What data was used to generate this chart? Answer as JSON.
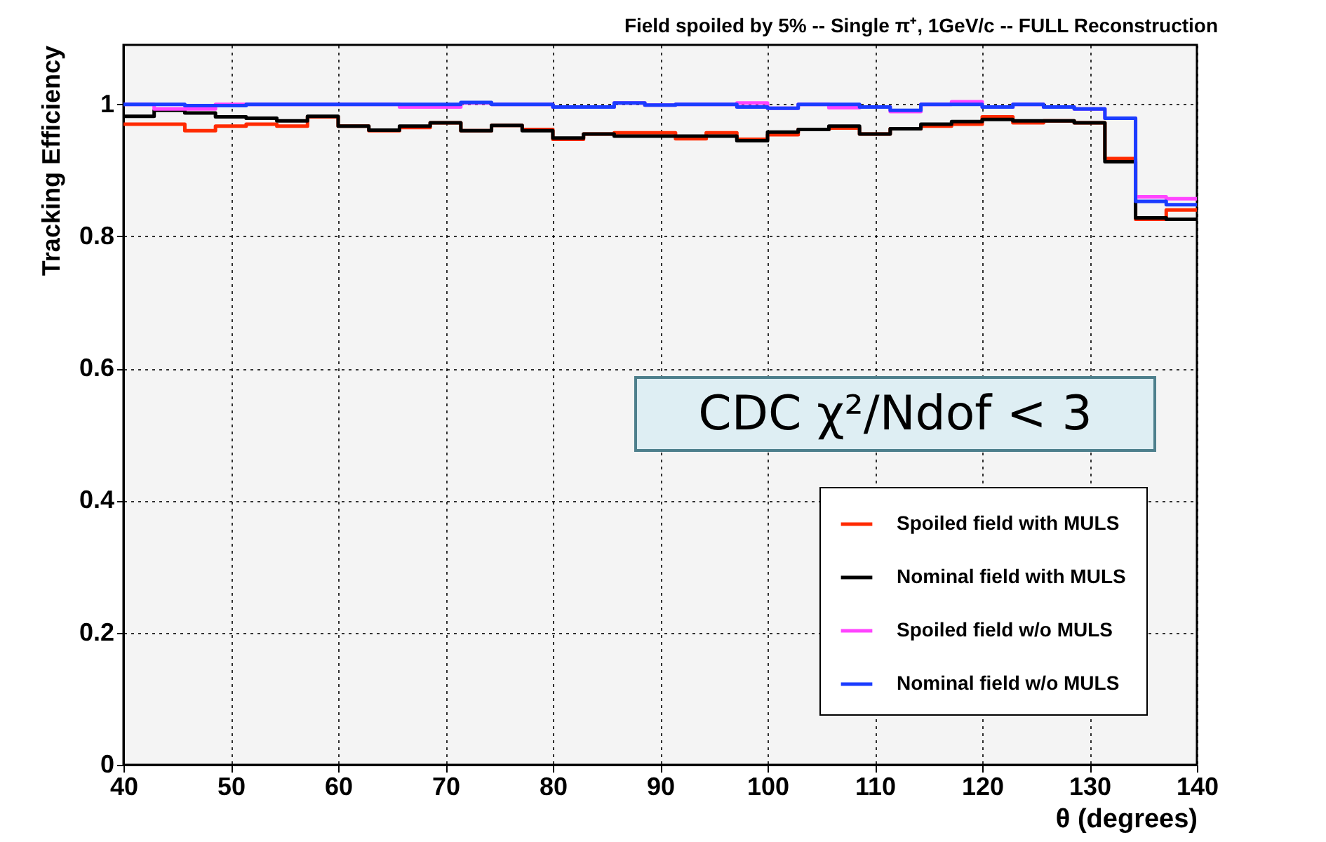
{
  "chart_data": {
    "type": "histogram",
    "title": "Field spoiled by 5%  --  Single π⁺, 1GeV/c  --  FULL Reconstruction",
    "xlabel": "θ (degrees)",
    "ylabel": "Tracking Efficiency",
    "annotations": [
      "CDC  χ²/Ndof < 3"
    ],
    "bins": [
      40,
      42.857,
      45.714,
      48.571,
      51.429,
      54.286,
      57.143,
      60,
      62.857,
      65.714,
      68.571,
      71.429,
      74.286,
      77.143,
      80,
      82.857,
      85.714,
      88.571,
      91.429,
      94.286,
      97.143,
      100,
      102.857,
      105.714,
      108.571,
      111.429,
      114.286,
      117.143,
      120,
      122.857,
      125.714,
      128.571,
      131.429,
      134.286,
      137.143,
      140
    ],
    "series": [
      {
        "name": "Spoiled field with MULS",
        "color": "#ff2a00",
        "values": [
          0.97,
          0.97,
          0.96,
          0.967,
          0.97,
          0.967,
          0.981,
          0.967,
          0.96,
          0.965,
          0.972,
          0.96,
          0.968,
          0.962,
          0.947,
          0.955,
          0.957,
          0.957,
          0.948,
          0.957,
          0.947,
          0.954,
          0.962,
          0.964,
          0.955,
          0.963,
          0.967,
          0.97,
          0.981,
          0.972,
          0.975,
          0.972,
          0.918,
          0.826,
          0.84
        ]
      },
      {
        "name": "Nominal field with MULS",
        "color": "#000000",
        "values": [
          0.982,
          0.991,
          0.987,
          0.981,
          0.979,
          0.975,
          0.982,
          0.967,
          0.961,
          0.967,
          0.972,
          0.96,
          0.968,
          0.96,
          0.949,
          0.955,
          0.952,
          0.952,
          0.952,
          0.952,
          0.945,
          0.958,
          0.962,
          0.967,
          0.955,
          0.963,
          0.97,
          0.974,
          0.977,
          0.975,
          0.975,
          0.972,
          0.913,
          0.828,
          0.826
        ]
      },
      {
        "name": "Spoiled field w/o MULS",
        "color": "#ff44ff",
        "values": [
          1,
          0.993,
          0.993,
          1,
          1,
          1,
          1,
          1,
          1,
          0.996,
          0.996,
          1.002,
          1,
          1,
          0.996,
          0.996,
          1.002,
          0.999,
          1,
          1,
          1.002,
          0.994,
          1,
          0.995,
          0.996,
          0.989,
          1,
          1.004,
          0.996,
          1,
          0.996,
          0.993,
          0.979,
          0.86,
          0.857
        ]
      },
      {
        "name": "Nominal field w/o MULS",
        "color": "#1a3cff",
        "values": [
          1,
          1,
          0.998,
          0.998,
          1,
          1,
          1,
          1,
          1,
          1,
          1,
          1.003,
          1,
          1,
          0.996,
          0.996,
          1.002,
          0.999,
          1,
          1,
          0.996,
          0.994,
          1,
          1,
          0.996,
          0.991,
          1,
          1,
          0.996,
          1,
          0.996,
          0.993,
          0.979,
          0.853,
          0.848
        ]
      }
    ],
    "xlim": [
      40,
      140
    ],
    "xticks": [
      40,
      50,
      60,
      70,
      80,
      90,
      100,
      110,
      120,
      130,
      140
    ],
    "ylim": [
      0,
      1.09
    ],
    "yticks": [
      0,
      0.2,
      0.4,
      0.6,
      0.8,
      1
    ],
    "grid": true,
    "legend": "bottom right"
  }
}
